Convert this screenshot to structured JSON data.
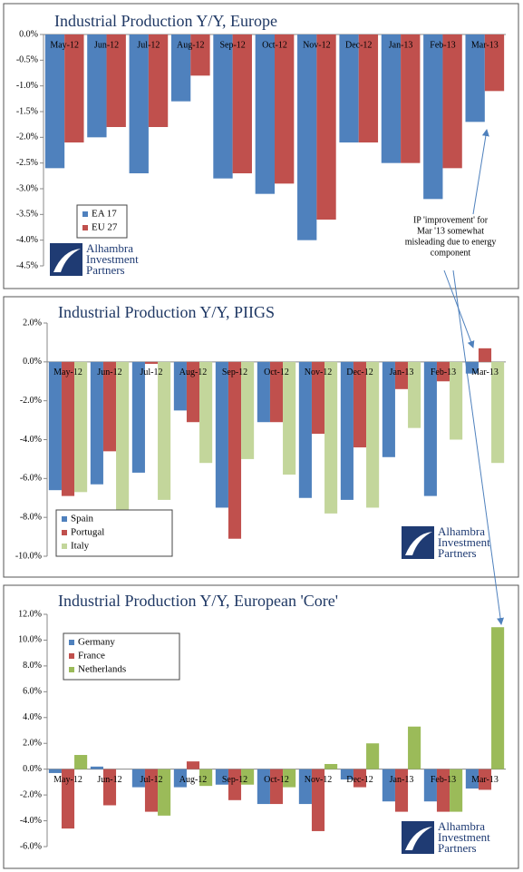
{
  "chart_data": [
    {
      "type": "bar",
      "title": "Industrial Production Y/Y, Europe",
      "categories": [
        "May-12",
        "Jun-12",
        "Jul-12",
        "Aug-12",
        "Sep-12",
        "Oct-12",
        "Nov-12",
        "Dec-12",
        "Jan-13",
        "Feb-13",
        "Mar-13"
      ],
      "series": [
        {
          "name": "EA 17",
          "color": "#4f81bd",
          "values": [
            -2.6,
            -2.0,
            -2.7,
            -1.3,
            -2.8,
            -3.1,
            -4.0,
            -2.1,
            -2.5,
            -3.2,
            -1.7
          ]
        },
        {
          "name": "EU 27",
          "color": "#c0504d",
          "values": [
            -2.1,
            -1.8,
            -1.8,
            -0.8,
            -2.7,
            -2.9,
            -3.6,
            -2.1,
            -2.5,
            -2.6,
            -1.1
          ]
        }
      ],
      "ylim": [
        -4.5,
        0
      ],
      "yticks": [
        {
          "value": 0,
          "label": "0.0%"
        },
        {
          "value": -0.5,
          "label": "-0.5%"
        },
        {
          "value": -1,
          "label": "-1.0%"
        },
        {
          "value": -1.5,
          "label": "-1.5%"
        },
        {
          "value": -2,
          "label": "-2.0%"
        },
        {
          "value": -2.5,
          "label": "-2.5%"
        },
        {
          "value": -3,
          "label": "-3.0%"
        },
        {
          "value": -3.5,
          "label": "-3.5%"
        },
        {
          "value": -4,
          "label": "-4.0%"
        },
        {
          "value": -4.5,
          "label": "-4.5%"
        }
      ],
      "legend": "lower left",
      "annotation": [
        "IP 'improvement' for",
        "Mar '13 somewhat",
        "misleading due to energy",
        "component"
      ],
      "watermark": [
        "Alhambra",
        "Investment",
        "Partners"
      ]
    },
    {
      "type": "bar",
      "title": "Industrial Production Y/Y, PIIGS",
      "categories": [
        "May-12",
        "Jun-12",
        "Jul-12",
        "Aug-12",
        "Sep-12",
        "Oct-12",
        "Nov-12",
        "Dec-12",
        "Jan-13",
        "Feb-13",
        "Mar-13"
      ],
      "series": [
        {
          "name": "Spain",
          "color": "#4f81bd",
          "values": [
            -6.6,
            -6.3,
            -5.7,
            -2.5,
            -7.5,
            -3.1,
            -7.0,
            -7.1,
            -4.9,
            -6.9,
            -0.6
          ]
        },
        {
          "name": "Portugal",
          "color": "#c0504d",
          "values": [
            -6.9,
            -4.6,
            -0.1,
            -3.1,
            -9.1,
            -3.1,
            -3.7,
            -4.4,
            -1.4,
            -1.0,
            0.7
          ]
        },
        {
          "name": "Italy",
          "color": "#c3d69b",
          "values": [
            -6.7,
            -7.9,
            -7.1,
            -5.2,
            -5.0,
            -5.8,
            -7.8,
            -7.5,
            -3.4,
            -4.0,
            -5.2
          ]
        }
      ],
      "ylim": [
        -10,
        2
      ],
      "yticks": [
        {
          "value": 2,
          "label": "2.0%"
        },
        {
          "value": 0,
          "label": "0.0%"
        },
        {
          "value": -2,
          "label": "-2.0%"
        },
        {
          "value": -4,
          "label": "-4.0%"
        },
        {
          "value": -6,
          "label": "-6.0%"
        },
        {
          "value": -8,
          "label": "-8.0%"
        },
        {
          "value": -10,
          "label": "-10.0%"
        }
      ],
      "legend": "lower left",
      "watermark": [
        "Alhambra",
        "Investment",
        "Partners"
      ]
    },
    {
      "type": "bar",
      "title": "Industrial Production Y/Y, European 'Core'",
      "categories": [
        "May-12",
        "Jun-12",
        "Jul-12",
        "Aug-12",
        "Sep-12",
        "Oct-12",
        "Nov-12",
        "Dec-12",
        "Jan-13",
        "Feb-13",
        "Mar-13"
      ],
      "series": [
        {
          "name": "Germany",
          "color": "#4f81bd",
          "values": [
            -0.3,
            0.2,
            -1.4,
            -1.4,
            -1.2,
            -2.7,
            -2.7,
            -0.8,
            -2.5,
            -2.5,
            -1.5
          ]
        },
        {
          "name": "France",
          "color": "#c0504d",
          "values": [
            -4.6,
            -2.8,
            -3.3,
            0.6,
            -2.4,
            -2.7,
            -4.8,
            -1.4,
            -3.3,
            -3.3,
            -1.6
          ]
        },
        {
          "name": "Netherlands",
          "color": "#9bbb59",
          "values": [
            1.1,
            0.0,
            -3.6,
            -1.3,
            -1.2,
            -1.4,
            0.4,
            2.0,
            3.3,
            -3.3,
            11.0
          ]
        }
      ],
      "ylim": [
        -6,
        12
      ],
      "yticks": [
        {
          "value": 12,
          "label": "12.0%"
        },
        {
          "value": 10,
          "label": "10.0%"
        },
        {
          "value": 8,
          "label": "8.0%"
        },
        {
          "value": 6,
          "label": "6.0%"
        },
        {
          "value": 4,
          "label": "4.0%"
        },
        {
          "value": 2,
          "label": "2.0%"
        },
        {
          "value": 0,
          "label": "0.0%"
        },
        {
          "value": -2,
          "label": "-2.0%"
        },
        {
          "value": -4,
          "label": "-4.0%"
        },
        {
          "value": -6,
          "label": "-6.0%"
        }
      ],
      "legend": "upper left",
      "watermark": [
        "Alhambra",
        "Investment",
        "Partners"
      ]
    }
  ]
}
